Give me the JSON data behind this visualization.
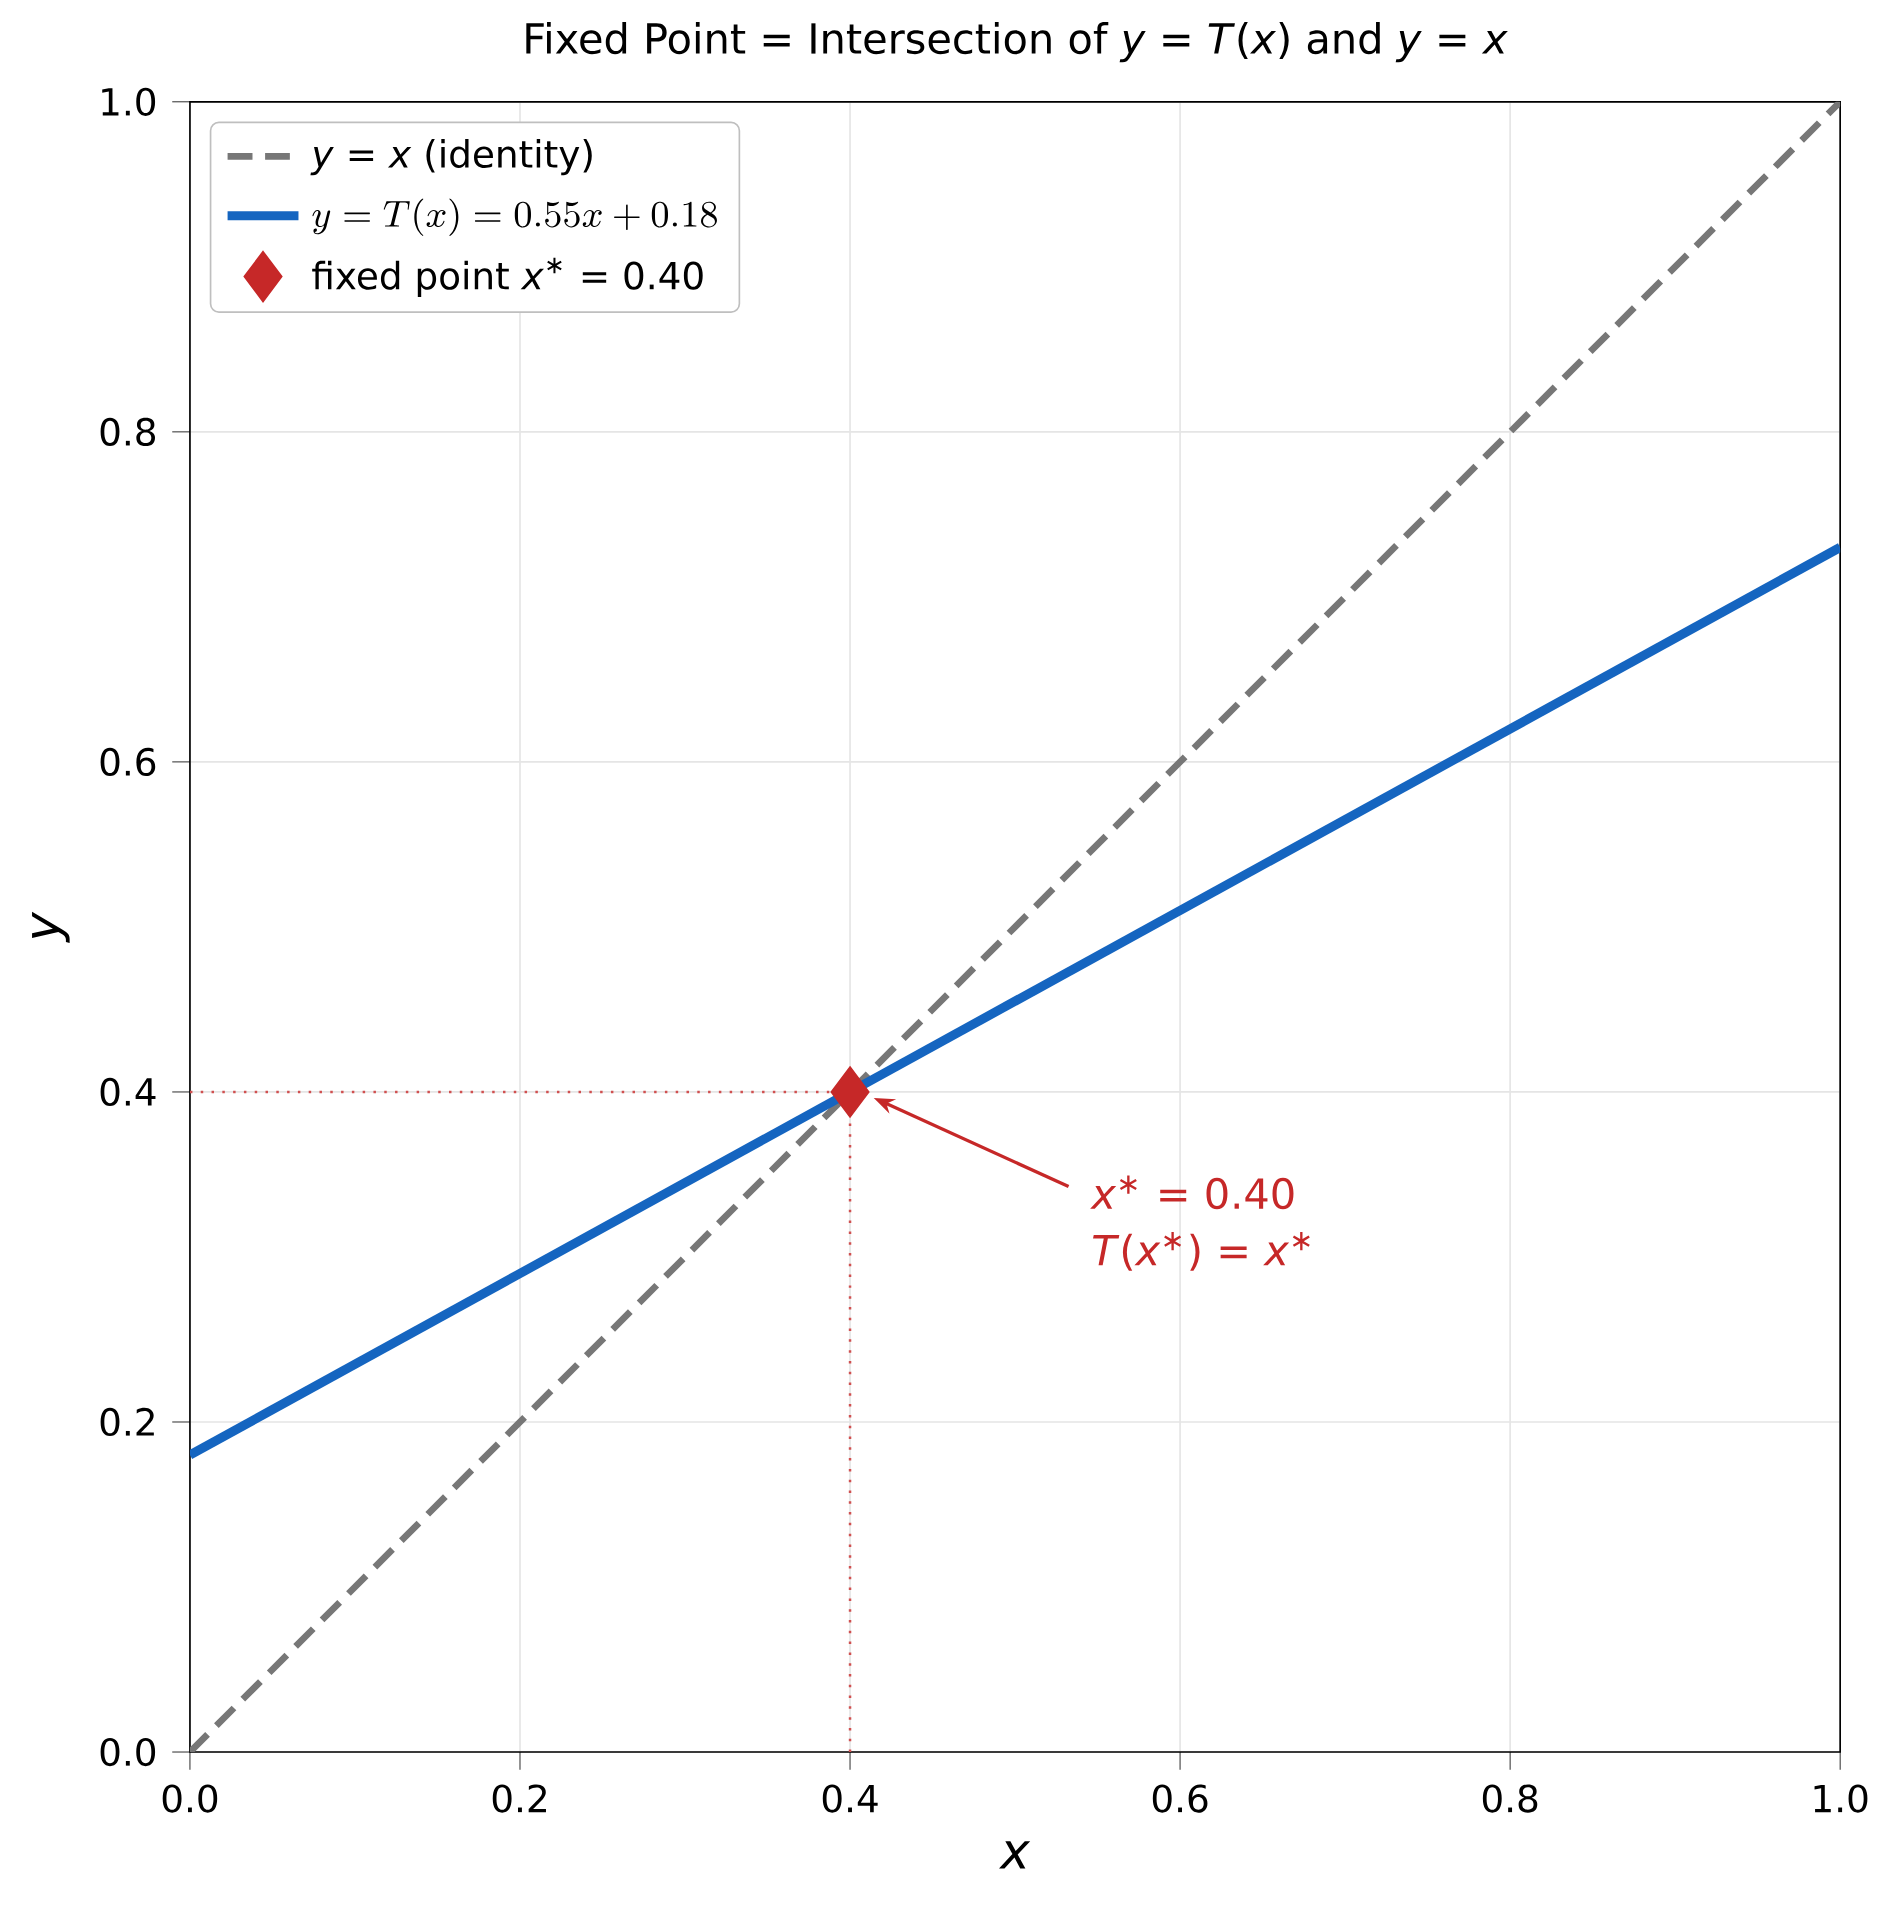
{
  "chart_data": {
    "type": "line",
    "title": "Fixed Point = Intersection of *y* = *T*(*x*) and *y* = *x*",
    "xlabel": "x",
    "ylabel": "y",
    "xlim": [
      0,
      1
    ],
    "ylim": [
      0,
      1
    ],
    "xticks": [
      {
        "value": 0,
        "label": "0.0"
      },
      {
        "value": 0.2,
        "label": "0.2"
      },
      {
        "value": 0.4,
        "label": "0.4"
      },
      {
        "value": 0.6,
        "label": "0.6"
      },
      {
        "value": 0.8,
        "label": "0.8"
      },
      {
        "value": 1,
        "label": "1.0"
      }
    ],
    "yticks": [
      {
        "value": 0,
        "label": "0.0"
      },
      {
        "value": 0.2,
        "label": "0.2"
      },
      {
        "value": 0.4,
        "label": "0.4"
      },
      {
        "value": 0.6,
        "label": "0.6"
      },
      {
        "value": 0.8,
        "label": "0.8"
      },
      {
        "value": 1,
        "label": "1.0"
      }
    ],
    "grid": true,
    "legend": "top left",
    "series": [
      {
        "name": "*y* = *x* (identity)",
        "type": "line",
        "color": "#777777",
        "line_style": "dashed",
        "x": [
          0,
          1
        ],
        "values": [
          0,
          1
        ]
      },
      {
        "name": "y = T(x) = 0.55x + 0.18",
        "type": "line",
        "color": "#1565c0",
        "line_style": "solid",
        "x": [
          0,
          1
        ],
        "values": [
          0.18,
          0.73
        ]
      },
      {
        "name": "fixed point *x*$^{∗}$ = 0.40",
        "type": "scatter",
        "color": "#c62828",
        "marker": "diamond",
        "x": [
          0.4
        ],
        "values": [
          0.4
        ]
      },
      {
        "type": "line",
        "color": "#d05050",
        "line_style": "dotted",
        "x": [
          0.4,
          0.4
        ],
        "values": [
          0,
          0.4
        ]
      },
      {
        "type": "line",
        "color": "#d05050",
        "line_style": "dotted",
        "x": [
          0,
          0.4
        ],
        "values": [
          0.4,
          0.4
        ]
      }
    ],
    "annotations": [
      "*x*$^{∗}$ = 0.40",
      "*T*(*x*$^{∗}$) = *x*$^{∗}$"
    ]
  }
}
